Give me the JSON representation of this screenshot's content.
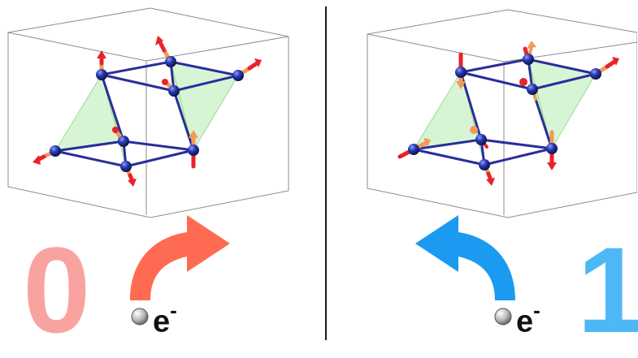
{
  "colors": {
    "state_zero": "#f9a3a0",
    "state_one": "#4db8f5",
    "arrow_forward": "#ff6b52",
    "arrow_back": "#1a9af0",
    "atom": "#1f2f9c",
    "bond": "#2a2d9a",
    "spin_head": "#e8232a",
    "spin_tail": "#f39a56",
    "tetrahedron": "#b7ecb0"
  },
  "left_panel": {
    "state_digit": "0",
    "electron_symbol": "e",
    "electron_charge": "-"
  },
  "right_panel": {
    "state_digit": "1",
    "electron_symbol": "e",
    "electron_charge": "-"
  }
}
